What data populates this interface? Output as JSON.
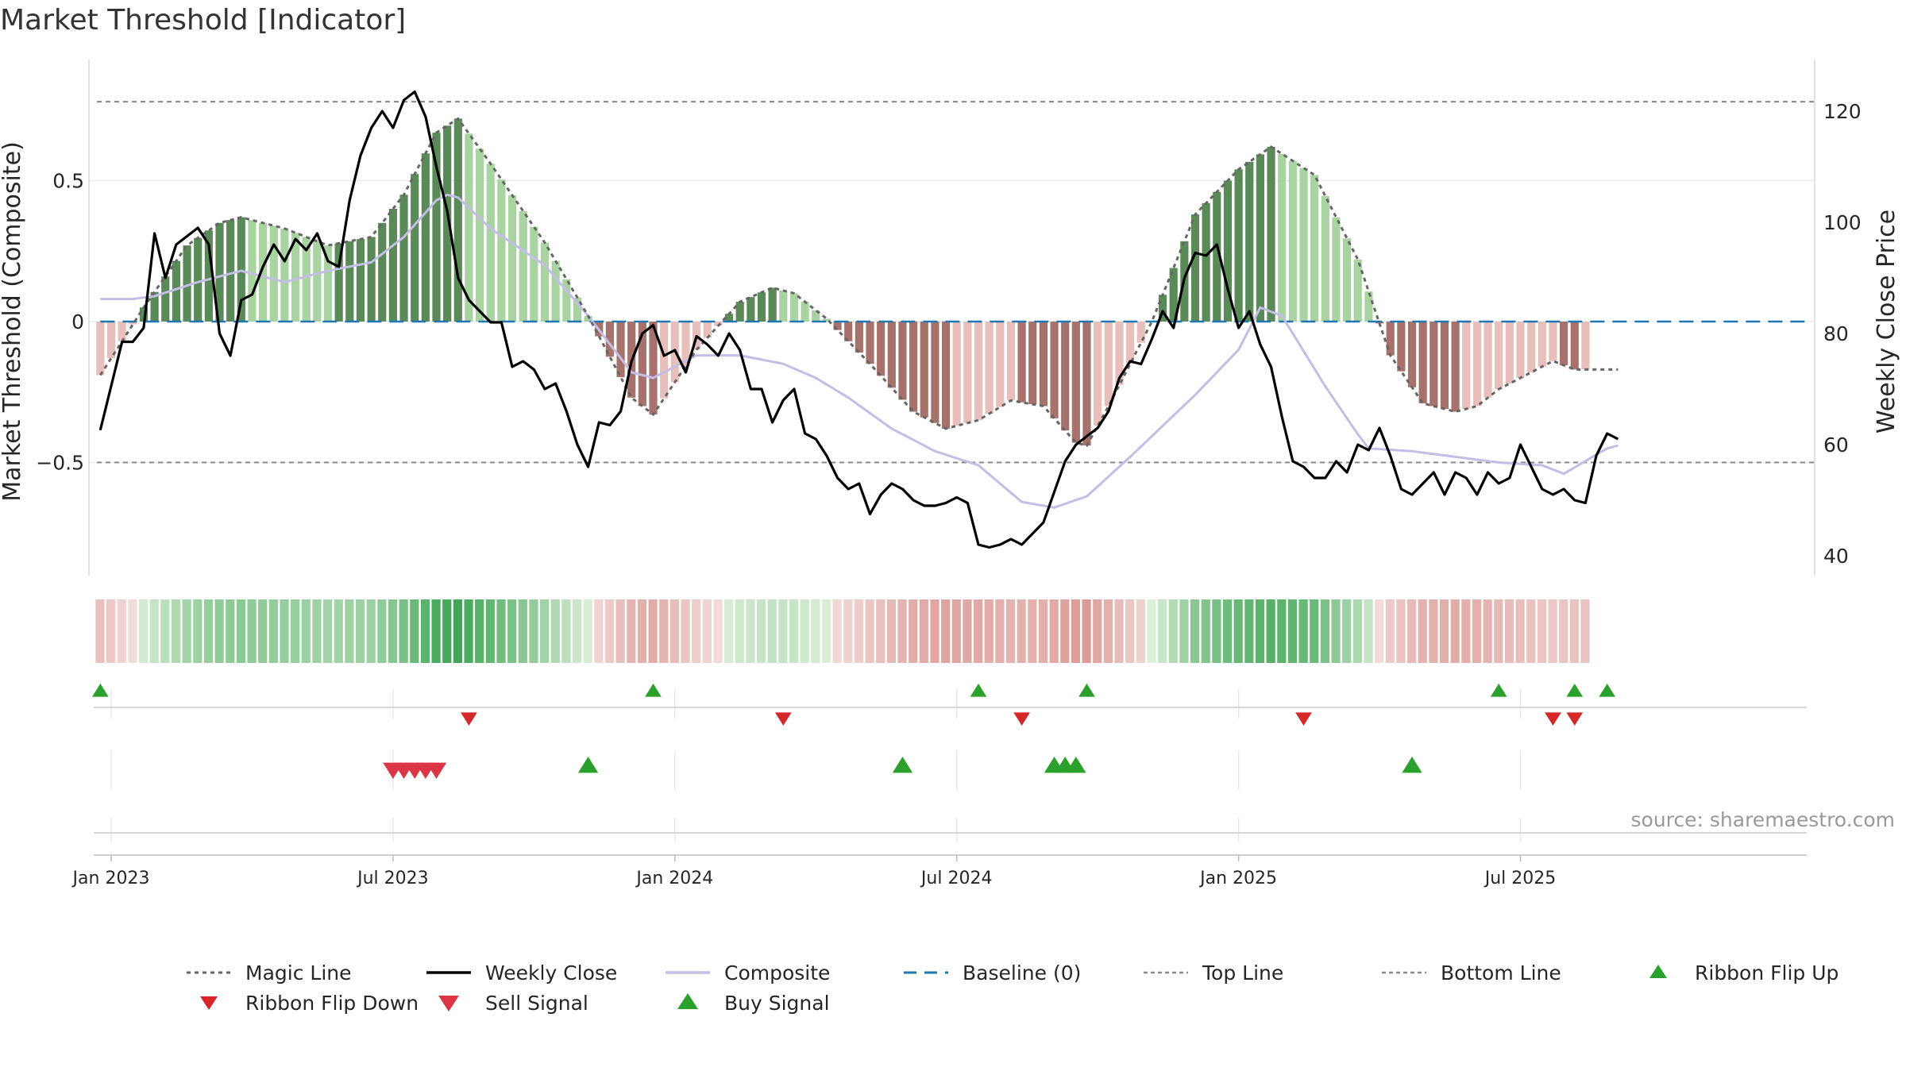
{
  "chart_data": {
    "type": "line+bar",
    "title": "Market Threshold [Indicator]",
    "source": "source: sharemaestro.com",
    "ylabel_left": "Market Threshold (Composite)",
    "ylabel_right": "Weekly Close Price",
    "ylim_left": [
      -0.92,
      0.92
    ],
    "ylim_right": [
      35,
      125
    ],
    "yticks_left": [
      {
        "value": 0.5,
        "label": "0.5"
      },
      {
        "value": 0,
        "label": "0"
      },
      {
        "value": -0.5,
        "label": "−0.5"
      }
    ],
    "yticks_right": [
      {
        "value": 120,
        "label": "120"
      },
      {
        "value": 100,
        "label": "100"
      },
      {
        "value": 80,
        "label": "80"
      },
      {
        "value": 60,
        "label": "60"
      },
      {
        "value": 40,
        "label": "40"
      }
    ],
    "top_line": 0.78,
    "bottom_line": -0.5,
    "weeks": 138,
    "start_week_offset": -1,
    "date_ticks": [
      {
        "week": 0,
        "label": "Jan 2023"
      },
      {
        "week": 26,
        "label": "Jul 2023"
      },
      {
        "week": 52,
        "label": "Jan 2024"
      },
      {
        "week": 78,
        "label": "Jul 2024"
      },
      {
        "week": 104,
        "label": "Jan 2025"
      },
      {
        "week": 130,
        "label": "Jul 2025"
      }
    ],
    "composite_keys": [
      [
        -1,
        0.08
      ],
      [
        2,
        0.08
      ],
      [
        4,
        0.09
      ],
      [
        8,
        0.14
      ],
      [
        12,
        0.18
      ],
      [
        16,
        0.14
      ],
      [
        20,
        0.18
      ],
      [
        24,
        0.21
      ],
      [
        27,
        0.3
      ],
      [
        30,
        0.43
      ],
      [
        31,
        0.45
      ],
      [
        32,
        0.44
      ],
      [
        35,
        0.33
      ],
      [
        40,
        0.2
      ],
      [
        44,
        0.02
      ],
      [
        48,
        -0.18
      ],
      [
        50,
        -0.2
      ],
      [
        54,
        -0.12
      ],
      [
        58,
        -0.12
      ],
      [
        62,
        -0.15
      ],
      [
        65,
        -0.2
      ],
      [
        68,
        -0.27
      ],
      [
        72,
        -0.38
      ],
      [
        76,
        -0.46
      ],
      [
        80,
        -0.51
      ],
      [
        84,
        -0.64
      ],
      [
        87,
        -0.66
      ],
      [
        90,
        -0.62
      ],
      [
        94,
        -0.48
      ],
      [
        100,
        -0.26
      ],
      [
        104,
        -0.1
      ],
      [
        106,
        0.05
      ],
      [
        108,
        0.02
      ],
      [
        112,
        -0.23
      ],
      [
        115,
        -0.4
      ],
      [
        116,
        -0.45
      ],
      [
        120,
        -0.46
      ],
      [
        124,
        -0.48
      ],
      [
        128,
        -0.5
      ],
      [
        132,
        -0.51
      ],
      [
        134,
        -0.54
      ],
      [
        138,
        -0.45
      ],
      [
        139,
        -0.44
      ]
    ],
    "magic_keys": [
      [
        -1,
        -0.19
      ],
      [
        3,
        0.05
      ],
      [
        7,
        0.27
      ],
      [
        10,
        0.35
      ],
      [
        12,
        0.37
      ],
      [
        16,
        0.33
      ],
      [
        20,
        0.27
      ],
      [
        24,
        0.3
      ],
      [
        27,
        0.45
      ],
      [
        30,
        0.67
      ],
      [
        32,
        0.72
      ],
      [
        35,
        0.56
      ],
      [
        40,
        0.28
      ],
      [
        44,
        0.02
      ],
      [
        48,
        -0.27
      ],
      [
        50,
        -0.33
      ],
      [
        54,
        -0.1
      ],
      [
        58,
        0.07
      ],
      [
        61,
        0.12
      ],
      [
        63,
        0.1
      ],
      [
        66,
        0.01
      ],
      [
        70,
        -0.15
      ],
      [
        74,
        -0.32
      ],
      [
        77,
        -0.38
      ],
      [
        80,
        -0.35
      ],
      [
        83,
        -0.28
      ],
      [
        86,
        -0.3
      ],
      [
        89,
        -0.43
      ],
      [
        90,
        -0.44
      ],
      [
        92,
        -0.3
      ],
      [
        96,
        0.0
      ],
      [
        100,
        0.38
      ],
      [
        104,
        0.54
      ],
      [
        107,
        0.62
      ],
      [
        111,
        0.52
      ],
      [
        115,
        0.22
      ],
      [
        118,
        -0.12
      ],
      [
        121,
        -0.29
      ],
      [
        124,
        -0.32
      ],
      [
        126,
        -0.3
      ],
      [
        128,
        -0.24
      ],
      [
        131,
        -0.18
      ],
      [
        133,
        -0.14
      ],
      [
        135,
        -0.17
      ],
      [
        139,
        -0.17
      ]
    ],
    "weekly_close_keys": [
      [
        -1,
        62.6
      ],
      [
        1,
        78.5
      ],
      [
        2,
        78.5
      ],
      [
        3,
        81
      ],
      [
        4,
        98
      ],
      [
        5,
        90
      ],
      [
        6,
        96
      ],
      [
        8,
        99
      ],
      [
        9,
        96
      ],
      [
        10,
        80
      ],
      [
        11,
        76
      ],
      [
        12,
        86
      ],
      [
        13,
        87
      ],
      [
        14,
        92
      ],
      [
        15,
        96
      ],
      [
        16,
        93
      ],
      [
        17,
        97
      ],
      [
        18,
        95
      ],
      [
        19,
        98
      ],
      [
        20,
        93
      ],
      [
        21,
        92
      ],
      [
        22,
        104
      ],
      [
        23,
        112
      ],
      [
        24,
        117
      ],
      [
        25,
        120
      ],
      [
        26,
        117
      ],
      [
        27,
        122
      ],
      [
        28,
        123.5
      ],
      [
        29,
        119
      ],
      [
        30,
        110
      ],
      [
        31,
        102
      ],
      [
        32,
        90
      ],
      [
        33,
        86
      ],
      [
        34,
        84
      ],
      [
        35,
        82
      ],
      [
        36,
        82
      ],
      [
        37,
        74
      ],
      [
        38,
        75
      ],
      [
        39,
        73.5
      ],
      [
        40,
        70
      ],
      [
        41,
        71
      ],
      [
        42,
        66
      ],
      [
        43,
        60
      ],
      [
        44,
        56
      ],
      [
        45,
        64
      ],
      [
        46,
        63.5
      ],
      [
        47,
        66
      ],
      [
        48,
        75
      ],
      [
        49,
        80
      ],
      [
        50,
        81.5
      ],
      [
        51,
        76
      ],
      [
        52,
        77
      ],
      [
        53,
        73
      ],
      [
        54,
        79.5
      ],
      [
        55,
        78
      ],
      [
        56,
        76
      ],
      [
        57,
        80
      ],
      [
        58,
        77
      ],
      [
        59,
        70
      ],
      [
        60,
        70
      ],
      [
        61,
        64
      ],
      [
        62,
        68
      ],
      [
        63,
        70
      ],
      [
        64,
        62
      ],
      [
        65,
        61
      ],
      [
        66,
        58
      ],
      [
        67,
        54
      ],
      [
        68,
        52
      ],
      [
        69,
        53
      ],
      [
        70,
        47.5
      ],
      [
        71,
        51
      ],
      [
        72,
        53
      ],
      [
        73,
        52
      ],
      [
        74,
        50
      ],
      [
        75,
        49
      ],
      [
        76,
        49
      ],
      [
        77,
        49.5
      ],
      [
        78,
        50.5
      ],
      [
        79,
        49.5
      ],
      [
        80,
        42
      ],
      [
        81,
        41.5
      ],
      [
        82,
        42
      ],
      [
        83,
        43
      ],
      [
        84,
        42
      ],
      [
        85,
        44
      ],
      [
        86,
        46
      ],
      [
        88,
        57
      ],
      [
        89,
        60
      ],
      [
        90,
        61.5
      ],
      [
        91,
        63
      ],
      [
        92,
        66
      ],
      [
        93,
        72
      ],
      [
        94,
        75
      ],
      [
        95,
        74.5
      ],
      [
        96,
        79
      ],
      [
        97,
        84
      ],
      [
        98,
        81
      ],
      [
        99,
        90
      ],
      [
        100,
        94.5
      ],
      [
        101,
        94
      ],
      [
        102,
        96
      ],
      [
        103,
        88
      ],
      [
        104,
        81
      ],
      [
        105,
        84
      ],
      [
        106,
        78
      ],
      [
        107,
        74
      ],
      [
        108,
        65
      ],
      [
        109,
        57
      ],
      [
        110,
        56
      ],
      [
        111,
        54
      ],
      [
        112,
        54
      ],
      [
        113,
        57
      ],
      [
        114,
        55
      ],
      [
        115,
        60
      ],
      [
        116,
        59
      ],
      [
        117,
        63
      ],
      [
        118,
        58
      ],
      [
        119,
        52
      ],
      [
        120,
        51
      ],
      [
        121,
        53
      ],
      [
        122,
        55
      ],
      [
        123,
        51
      ],
      [
        124,
        55
      ],
      [
        125,
        54
      ],
      [
        126,
        51
      ],
      [
        127,
        55
      ],
      [
        128,
        53
      ],
      [
        129,
        54
      ],
      [
        130,
        60
      ],
      [
        131,
        56
      ],
      [
        132,
        52
      ],
      [
        133,
        51
      ],
      [
        134,
        52
      ],
      [
        135,
        50
      ],
      [
        136,
        49.5
      ],
      [
        137,
        58
      ],
      [
        138,
        62
      ],
      [
        139,
        61
      ]
    ],
    "ribbon_flip_up_weeks": [
      -1,
      50,
      80,
      90,
      128,
      135,
      138
    ],
    "ribbon_flip_down_weeks": [
      33,
      62,
      84,
      110,
      133,
      135
    ],
    "sell_signal_weeks": [
      26,
      27,
      28,
      29,
      30
    ],
    "buy_signal_weeks": [
      44,
      73,
      87,
      88,
      89,
      120
    ],
    "legend": [
      {
        "key": "magic",
        "label": "Magic Line"
      },
      {
        "key": "close",
        "label": "Weekly Close"
      },
      {
        "key": "composite",
        "label": "Composite"
      },
      {
        "key": "baseline",
        "label": "Baseline (0)"
      },
      {
        "key": "top",
        "label": "Top Line"
      },
      {
        "key": "bottom",
        "label": "Bottom Line"
      },
      {
        "key": "flipup",
        "label": "Ribbon Flip Up"
      },
      {
        "key": "flipdown",
        "label": "Ribbon Flip Down"
      },
      {
        "key": "sell",
        "label": "Sell Signal"
      },
      {
        "key": "buy",
        "label": "Buy Signal"
      }
    ]
  },
  "colors": {
    "dark_green": "#5a8a57",
    "light_green": "#a9d4a2",
    "dark_red": "#a8726c",
    "light_red": "#e8bfbb",
    "gold": "#fbc10f",
    "composite": "#c4bde6",
    "close": "#000000",
    "magic": "#666666",
    "baseline": "#1f77b4",
    "guide": "#888888",
    "buy": "#2ca02c",
    "flip_down": "#d62728",
    "sell": "#dc3545"
  }
}
